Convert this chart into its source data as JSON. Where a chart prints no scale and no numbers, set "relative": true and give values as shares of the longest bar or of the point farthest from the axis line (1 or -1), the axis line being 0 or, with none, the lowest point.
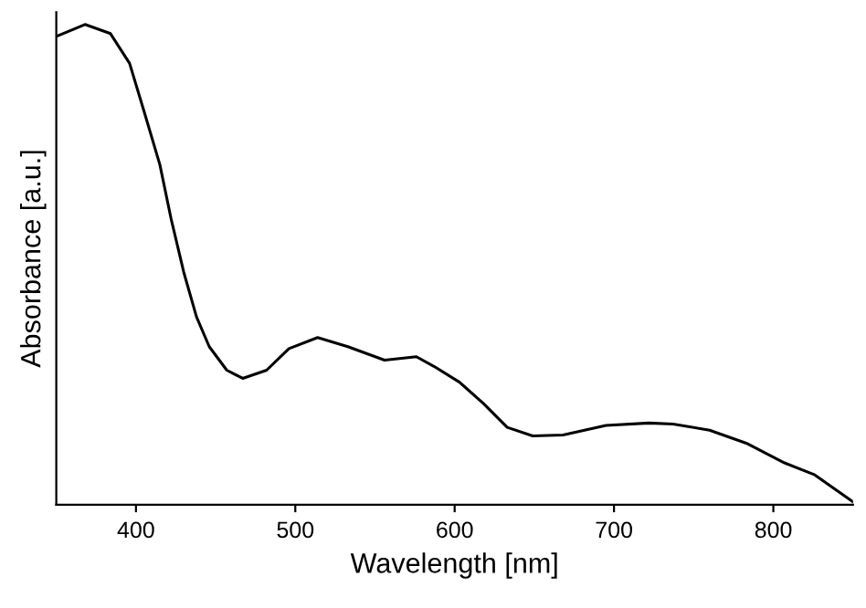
{
  "chart_data": {
    "type": "line",
    "xlabel": "Wavelength [nm]",
    "ylabel": "Absorbance [a.u.]",
    "relative": true,
    "tick_labels": "x",
    "grid": false,
    "legend": false,
    "marker": "none",
    "line_style": "solid",
    "xlim": [
      350,
      850
    ],
    "xticks": [
      400,
      500,
      600,
      700,
      800
    ],
    "series": [
      {
        "color": "#000000",
        "x": [
          350,
          368,
          384,
          396,
          405,
          415,
          422,
          430,
          438,
          446,
          457,
          467,
          482,
          496,
          514,
          533,
          556,
          576,
          587,
          603,
          618,
          633,
          649,
          668,
          695,
          722,
          737,
          760,
          783,
          807,
          826,
          850
        ],
        "values": [
          0.975,
          1.0,
          0.981,
          0.919,
          0.82,
          0.708,
          0.596,
          0.484,
          0.391,
          0.329,
          0.28,
          0.263,
          0.28,
          0.325,
          0.348,
          0.329,
          0.301,
          0.308,
          0.288,
          0.255,
          0.211,
          0.161,
          0.143,
          0.145,
          0.165,
          0.17,
          0.168,
          0.155,
          0.128,
          0.087,
          0.062,
          0.006
        ]
      }
    ]
  }
}
